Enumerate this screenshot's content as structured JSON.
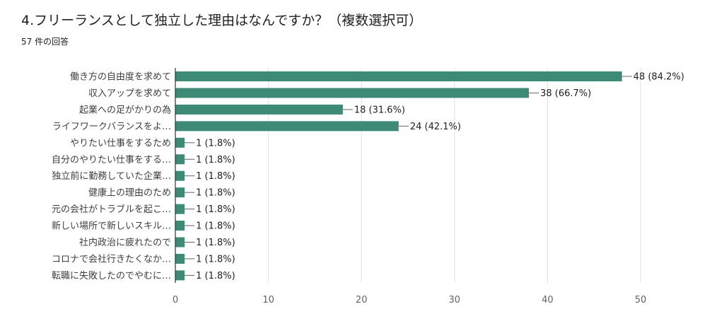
{
  "header": {
    "title": "4.フリーランスとして独立した理由はなんですか？（複数選択可）",
    "response_count": "57 件の回答"
  },
  "chart_data": {
    "type": "bar",
    "orientation": "horizontal",
    "bar_color": "#3d8b76",
    "grid": true,
    "xlim": [
      0,
      50
    ],
    "x_ticks": [
      0,
      10,
      20,
      30,
      40,
      50
    ],
    "categories": [
      "働き方の自由度を求めて",
      "収入アップを求めて",
      "起業への足がかりの為",
      "ライフワークバランスをよ…",
      "やりたい仕事をするため",
      "自分のやりたい仕事をする…",
      "独立前に勤務していた企業…",
      "健康上の理由のため",
      "元の会社がトラブルを起こ…",
      "新しい場所で新しいスキル…",
      "社内政治に疲れたので",
      "コロナで会社行きたくなか…",
      "転職に失敗したのでやむに…"
    ],
    "values": [
      48,
      38,
      18,
      24,
      1,
      1,
      1,
      1,
      1,
      1,
      1,
      1,
      1
    ],
    "value_labels": [
      "48 (84.2%)",
      "38 (66.7%)",
      "18 (31.6%)",
      "24 (42.1%)",
      "1 (1.8%)",
      "1 (1.8%)",
      "1 (1.8%)",
      "1 (1.8%)",
      "1 (1.8%)",
      "1 (1.8%)",
      "1 (1.8%)",
      "1 (1.8%)",
      "1 (1.8%)"
    ]
  }
}
